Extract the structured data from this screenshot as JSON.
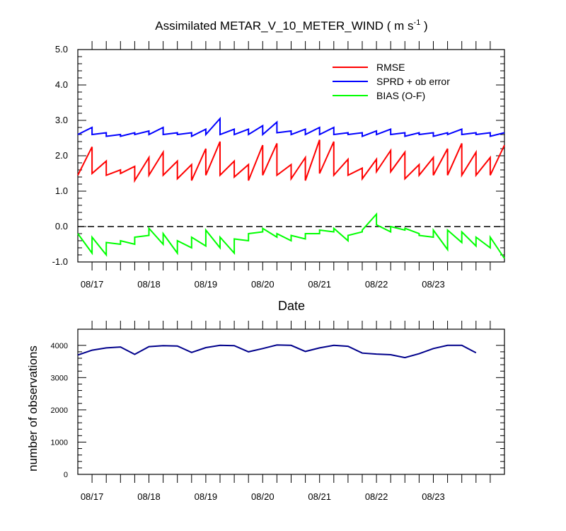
{
  "figure": {
    "title_main": "Assimilated METAR_V_10_METER_WIND ( m s",
    "title_sup": "-1",
    "title_end": " )"
  },
  "chart_data": [
    {
      "type": "line",
      "title": "Assimilated METAR_V_10_METER_WIND ( m s-1 )",
      "xlabel": "Date",
      "ylabel": "",
      "xlim": [
        0,
        7.5
      ],
      "ylim": [
        -1.0,
        5.0
      ],
      "yticks": [
        -1.0,
        0.0,
        1.0,
        2.0,
        3.0,
        4.0,
        5.0
      ],
      "ytick_labels": [
        "-1.0",
        "0.0",
        "1.0",
        "2.0",
        "3.0",
        "4.0",
        "5.0"
      ],
      "xticks": [
        0.25,
        1.25,
        2.25,
        3.25,
        4.25,
        5.25,
        6.25
      ],
      "xtick_labels": [
        "08/17",
        "08/18",
        "08/19",
        "08/20",
        "08/21",
        "08/22",
        "08/23"
      ],
      "reference_line": {
        "y": 0.0,
        "style": "dashed"
      },
      "legend": {
        "position": "top-right",
        "entries": [
          {
            "label": "RMSE",
            "color": "#ff0000"
          },
          {
            "label": "SPRD + ob error",
            "color": "#0000ff"
          },
          {
            "label": "BIAS (O-F)",
            "color": "#00ff00"
          }
        ]
      },
      "series": [
        {
          "name": "RMSE",
          "color": "#ff0000",
          "points": [
            [
              0,
              1.45
            ],
            [
              0.25,
              2.25
            ],
            [
              0.25,
              1.5
            ],
            [
              0.5,
              1.85
            ],
            [
              0.5,
              1.45
            ],
            [
              0.75,
              1.6
            ],
            [
              0.75,
              1.5
            ],
            [
              1.0,
              1.7
            ],
            [
              1.0,
              1.3
            ],
            [
              1.25,
              1.95
            ],
            [
              1.25,
              1.45
            ],
            [
              1.5,
              2.1
            ],
            [
              1.5,
              1.45
            ],
            [
              1.75,
              1.85
            ],
            [
              1.75,
              1.35
            ],
            [
              2.0,
              1.75
            ],
            [
              2.0,
              1.3
            ],
            [
              2.25,
              2.2
            ],
            [
              2.25,
              1.45
            ],
            [
              2.5,
              2.4
            ],
            [
              2.5,
              1.45
            ],
            [
              2.75,
              1.85
            ],
            [
              2.75,
              1.4
            ],
            [
              3.0,
              1.75
            ],
            [
              3.0,
              1.3
            ],
            [
              3.25,
              2.3
            ],
            [
              3.25,
              1.45
            ],
            [
              3.5,
              2.35
            ],
            [
              3.5,
              1.45
            ],
            [
              3.75,
              1.75
            ],
            [
              3.75,
              1.35
            ],
            [
              4.0,
              1.95
            ],
            [
              4.0,
              1.3
            ],
            [
              4.25,
              2.45
            ],
            [
              4.25,
              1.5
            ],
            [
              4.5,
              2.4
            ],
            [
              4.5,
              1.45
            ],
            [
              4.75,
              1.9
            ],
            [
              4.75,
              1.45
            ],
            [
              5.0,
              1.65
            ],
            [
              5.0,
              1.35
            ],
            [
              5.25,
              1.9
            ],
            [
              5.25,
              1.55
            ],
            [
              5.5,
              2.15
            ],
            [
              5.5,
              1.55
            ],
            [
              5.75,
              2.1
            ],
            [
              5.75,
              1.35
            ],
            [
              6.0,
              1.75
            ],
            [
              6.0,
              1.45
            ],
            [
              6.25,
              1.95
            ],
            [
              6.25,
              1.45
            ],
            [
              6.5,
              2.2
            ],
            [
              6.5,
              1.45
            ],
            [
              6.75,
              2.35
            ],
            [
              6.75,
              1.45
            ],
            [
              7.0,
              2.1
            ],
            [
              7.0,
              1.45
            ],
            [
              7.25,
              1.95
            ],
            [
              7.25,
              1.45
            ],
            [
              7.5,
              2.3
            ]
          ]
        },
        {
          "name": "SPRD + ob error",
          "color": "#0000ff",
          "points": [
            [
              0,
              2.6
            ],
            [
              0.25,
              2.8
            ],
            [
              0.25,
              2.6
            ],
            [
              0.5,
              2.65
            ],
            [
              0.5,
              2.55
            ],
            [
              0.75,
              2.6
            ],
            [
              0.75,
              2.55
            ],
            [
              1.0,
              2.65
            ],
            [
              1.0,
              2.6
            ],
            [
              1.25,
              2.7
            ],
            [
              1.25,
              2.6
            ],
            [
              1.5,
              2.8
            ],
            [
              1.5,
              2.6
            ],
            [
              1.75,
              2.65
            ],
            [
              1.75,
              2.6
            ],
            [
              2.0,
              2.65
            ],
            [
              2.0,
              2.55
            ],
            [
              2.25,
              2.75
            ],
            [
              2.25,
              2.6
            ],
            [
              2.5,
              3.05
            ],
            [
              2.5,
              2.6
            ],
            [
              2.75,
              2.75
            ],
            [
              2.75,
              2.6
            ],
            [
              3.0,
              2.75
            ],
            [
              3.0,
              2.6
            ],
            [
              3.25,
              2.85
            ],
            [
              3.25,
              2.6
            ],
            [
              3.5,
              2.95
            ],
            [
              3.5,
              2.65
            ],
            [
              3.75,
              2.7
            ],
            [
              3.75,
              2.6
            ],
            [
              4.0,
              2.75
            ],
            [
              4.0,
              2.6
            ],
            [
              4.25,
              2.8
            ],
            [
              4.25,
              2.6
            ],
            [
              4.5,
              2.8
            ],
            [
              4.5,
              2.6
            ],
            [
              4.75,
              2.65
            ],
            [
              4.75,
              2.6
            ],
            [
              5.0,
              2.65
            ],
            [
              5.0,
              2.55
            ],
            [
              5.25,
              2.7
            ],
            [
              5.25,
              2.6
            ],
            [
              5.5,
              2.75
            ],
            [
              5.5,
              2.6
            ],
            [
              5.75,
              2.65
            ],
            [
              5.75,
              2.55
            ],
            [
              6.0,
              2.65
            ],
            [
              6.0,
              2.6
            ],
            [
              6.25,
              2.65
            ],
            [
              6.25,
              2.55
            ],
            [
              6.5,
              2.65
            ],
            [
              6.5,
              2.6
            ],
            [
              6.75,
              2.75
            ],
            [
              6.75,
              2.6
            ],
            [
              7.0,
              2.65
            ],
            [
              7.0,
              2.6
            ],
            [
              7.25,
              2.65
            ],
            [
              7.25,
              2.55
            ],
            [
              7.5,
              2.65
            ]
          ]
        },
        {
          "name": "BIAS (O-F)",
          "color": "#00ff00",
          "points": [
            [
              0,
              -0.2
            ],
            [
              0.25,
              -0.75
            ],
            [
              0.25,
              -0.3
            ],
            [
              0.5,
              -0.8
            ],
            [
              0.5,
              -0.45
            ],
            [
              0.75,
              -0.5
            ],
            [
              0.75,
              -0.4
            ],
            [
              1.0,
              -0.5
            ],
            [
              1.0,
              -0.3
            ],
            [
              1.25,
              -0.25
            ],
            [
              1.25,
              -0.05
            ],
            [
              1.5,
              -0.5
            ],
            [
              1.5,
              -0.2
            ],
            [
              1.75,
              -0.75
            ],
            [
              1.75,
              -0.4
            ],
            [
              2.0,
              -0.6
            ],
            [
              2.0,
              -0.3
            ],
            [
              2.25,
              -0.55
            ],
            [
              2.25,
              -0.1
            ],
            [
              2.5,
              -0.6
            ],
            [
              2.5,
              -0.3
            ],
            [
              2.75,
              -0.75
            ],
            [
              2.75,
              -0.35
            ],
            [
              3.0,
              -0.4
            ],
            [
              3.0,
              -0.2
            ],
            [
              3.25,
              -0.15
            ],
            [
              3.25,
              -0.05
            ],
            [
              3.5,
              -0.3
            ],
            [
              3.5,
              -0.2
            ],
            [
              3.75,
              -0.4
            ],
            [
              3.75,
              -0.25
            ],
            [
              4.0,
              -0.35
            ],
            [
              4.0,
              -0.2
            ],
            [
              4.25,
              -0.2
            ],
            [
              4.25,
              -0.1
            ],
            [
              4.5,
              -0.15
            ],
            [
              4.5,
              -0.05
            ],
            [
              4.75,
              -0.4
            ],
            [
              4.75,
              -0.25
            ],
            [
              5.0,
              -0.15
            ],
            [
              5.0,
              -0.1
            ],
            [
              5.25,
              0.35
            ],
            [
              5.25,
              0.05
            ],
            [
              5.5,
              -0.15
            ],
            [
              5.5,
              0.0
            ],
            [
              5.75,
              -0.1
            ],
            [
              5.75,
              -0.05
            ],
            [
              6.0,
              -0.2
            ],
            [
              6.0,
              -0.25
            ],
            [
              6.25,
              -0.3
            ],
            [
              6.25,
              -0.1
            ],
            [
              6.5,
              -0.65
            ],
            [
              6.5,
              -0.1
            ],
            [
              6.75,
              -0.45
            ],
            [
              6.75,
              -0.15
            ],
            [
              7.0,
              -0.55
            ],
            [
              7.0,
              -0.3
            ],
            [
              7.25,
              -0.6
            ],
            [
              7.25,
              -0.3
            ],
            [
              7.5,
              -0.9
            ]
          ]
        }
      ]
    },
    {
      "type": "line",
      "title": "",
      "xlabel": "",
      "ylabel": "number of observations",
      "xlim": [
        0,
        7.5
      ],
      "ylim": [
        0,
        4500
      ],
      "yticks": [
        0,
        1000,
        2000,
        3000,
        4000
      ],
      "ytick_labels": [
        "0",
        "1000",
        "2000",
        "3000",
        "4000"
      ],
      "xticks": [
        0.25,
        1.25,
        2.25,
        3.25,
        4.25,
        5.25,
        6.25
      ],
      "xtick_labels": [
        "08/17",
        "08/18",
        "08/19",
        "08/20",
        "08/21",
        "08/22",
        "08/23"
      ],
      "series": [
        {
          "name": "number of observations",
          "color": "#00008b",
          "points": [
            [
              0,
              3700
            ],
            [
              0.25,
              3850
            ],
            [
              0.5,
              3920
            ],
            [
              0.75,
              3950
            ],
            [
              1.0,
              3720
            ],
            [
              1.25,
              3960
            ],
            [
              1.5,
              3990
            ],
            [
              1.75,
              3980
            ],
            [
              2.0,
              3780
            ],
            [
              2.25,
              3930
            ],
            [
              2.5,
              4000
            ],
            [
              2.75,
              3990
            ],
            [
              3.0,
              3800
            ],
            [
              3.25,
              3900
            ],
            [
              3.5,
              4010
            ],
            [
              3.75,
              4000
            ],
            [
              4.0,
              3810
            ],
            [
              4.25,
              3920
            ],
            [
              4.5,
              4000
            ],
            [
              4.75,
              3970
            ],
            [
              5.0,
              3760
            ],
            [
              5.25,
              3730
            ],
            [
              5.5,
              3710
            ],
            [
              5.75,
              3620
            ],
            [
              6.0,
              3740
            ],
            [
              6.25,
              3900
            ],
            [
              6.5,
              4000
            ],
            [
              6.75,
              4000
            ],
            [
              7.0,
              3770
            ]
          ]
        }
      ]
    }
  ]
}
